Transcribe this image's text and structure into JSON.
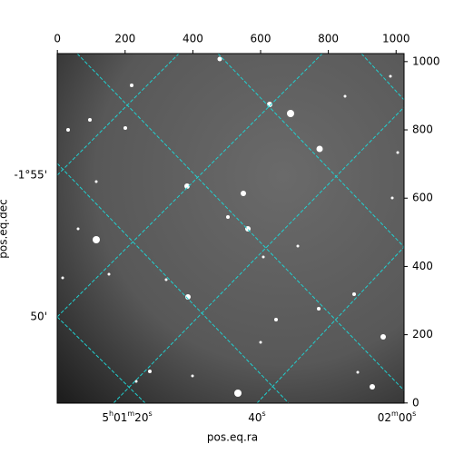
{
  "chart_data": {
    "type": "image",
    "xlabel": "pos.eq.ra",
    "ylabel": "pos.eq.dec",
    "xlim": [
      -0.5,
      1023.5
    ],
    "ylim": [
      -0.5,
      1023.5
    ],
    "xticks": [
      0,
      200,
      400,
      600,
      800,
      1000
    ],
    "yticks": [
      0,
      200,
      400,
      600,
      800,
      1000
    ],
    "ra_ticks": [
      "5h01m20s",
      "40s",
      "02m00s"
    ],
    "dec_ticks": [
      "-1°55'",
      "50'"
    ],
    "grid_color": "#20d0d0"
  }
}
